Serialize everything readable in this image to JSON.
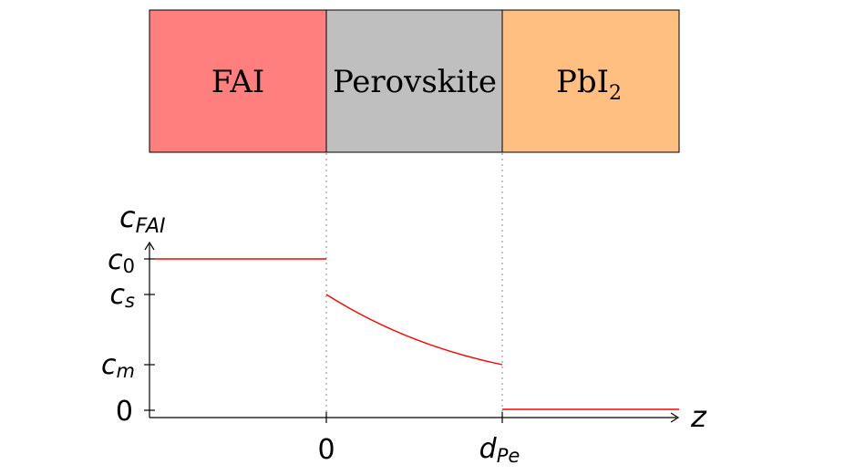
{
  "layers": [
    {
      "label": "FAI",
      "sub": "",
      "color": "#ff7f7f"
    },
    {
      "label": "Perovskite",
      "sub": "",
      "color": "#bfbfbf"
    },
    {
      "label": "PbI",
      "sub": "2",
      "color": "#ffbf80"
    }
  ],
  "axis": {
    "y_label_main": "c",
    "y_label_sub": "FAI",
    "x_label": "z",
    "y_ticks": [
      {
        "main": "c",
        "sub": "0"
      },
      {
        "main": "c",
        "sub": "s"
      },
      {
        "main": "c",
        "sub": "m"
      },
      {
        "main": "0",
        "sub": ""
      }
    ],
    "x_ticks": [
      {
        "main": "0",
        "sub": ""
      },
      {
        "main": "d",
        "sub": "Pe"
      }
    ]
  },
  "colors": {
    "curve": "#ff0000",
    "axis": "#000000",
    "guide": "#a0a0a0"
  }
}
